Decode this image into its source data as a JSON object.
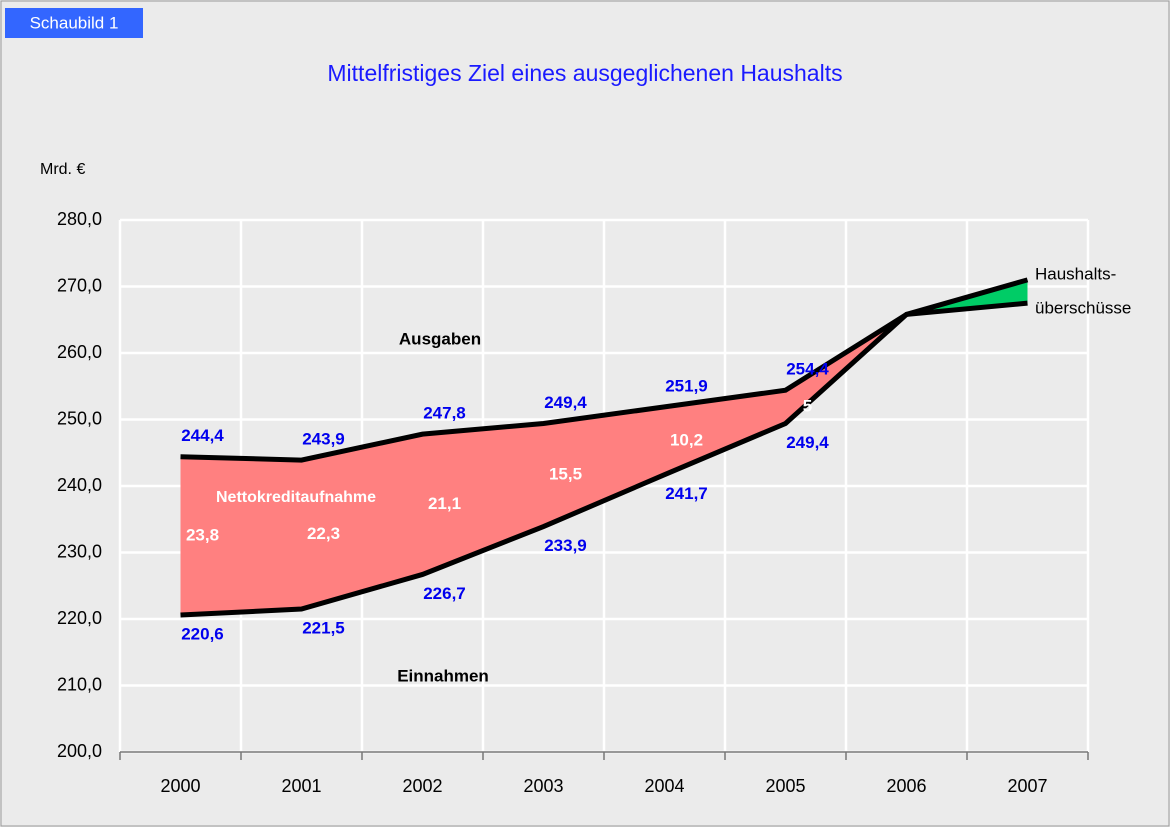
{
  "chart_data": {
    "type": "area-band",
    "badge": "Schaubild 1",
    "title": "Mittelfristiges Ziel eines ausgeglichenen Haushalts",
    "y_label": "Mrd. €",
    "categories": [
      "2000",
      "2001",
      "2002",
      "2003",
      "2004",
      "2005",
      "2006",
      "2007"
    ],
    "ylim": [
      200,
      280
    ],
    "yticks": [
      {
        "value": 200,
        "label": "200,0"
      },
      {
        "value": 210,
        "label": "210,0"
      },
      {
        "value": 220,
        "label": "220,0"
      },
      {
        "value": 230,
        "label": "230,0"
      },
      {
        "value": 240,
        "label": "240,0"
      },
      {
        "value": 250,
        "label": "250,0"
      },
      {
        "value": 260,
        "label": "260,0"
      },
      {
        "value": 270,
        "label": "270,0"
      },
      {
        "value": 280,
        "label": "280,0"
      }
    ],
    "grid": true,
    "series": [
      {
        "name": "Ausgaben",
        "color": "#000000",
        "values": [
          244.4,
          243.9,
          247.8,
          249.4,
          251.9,
          254.4,
          265.8,
          267.5
        ],
        "value_labels": [
          "244,4",
          "243,9",
          "247,8",
          "249,4",
          "251,9",
          "254,4",
          null,
          null
        ]
      },
      {
        "name": "Einnahmen",
        "color": "#000000",
        "values": [
          220.6,
          221.5,
          226.7,
          233.9,
          241.7,
          249.4,
          265.8,
          271
        ],
        "value_labels": [
          "220,6",
          "221,5",
          "226,7",
          "233,9",
          "241,7",
          "249,4",
          null,
          null
        ]
      },
      {
        "name": "Nettokreditaufnahme",
        "color": "#ff8080",
        "values": [
          23.8,
          22.3,
          21.1,
          15.5,
          10.2,
          5,
          null,
          null
        ],
        "value_labels": [
          "23,8",
          "22,3",
          "21,1",
          "15,5",
          "10,2",
          "5",
          null,
          null
        ]
      }
    ],
    "surplus_color": "#00cc66",
    "surplus_label": [
      "Haushalts-",
      "überschüsse"
    ]
  }
}
